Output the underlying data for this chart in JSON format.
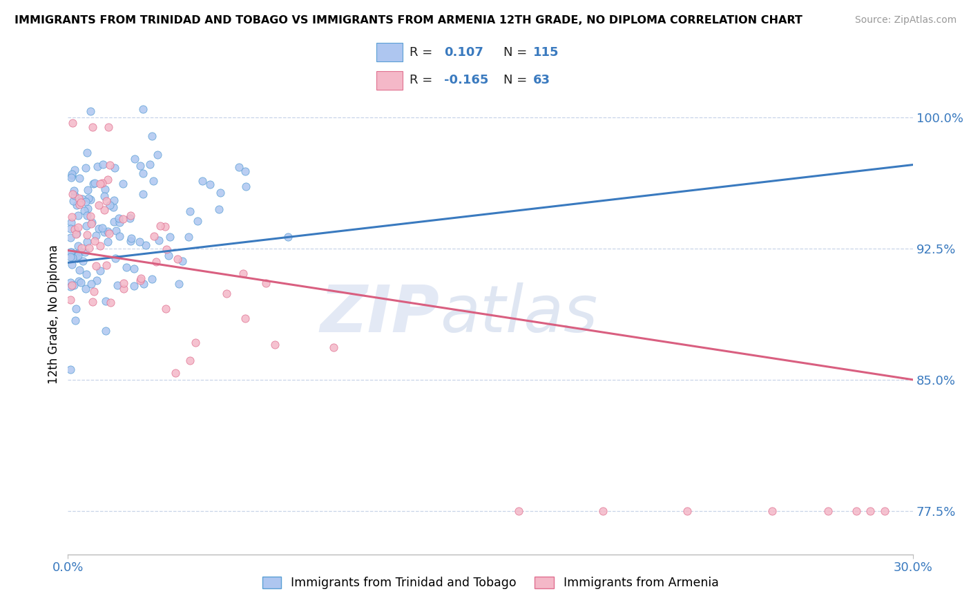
{
  "title": "IMMIGRANTS FROM TRINIDAD AND TOBAGO VS IMMIGRANTS FROM ARMENIA 12TH GRADE, NO DIPLOMA CORRELATION CHART",
  "source": "Source: ZipAtlas.com",
  "legend_labels": [
    "Immigrants from Trinidad and Tobago",
    "Immigrants from Armenia"
  ],
  "r_tt": 0.107,
  "n_tt": 115,
  "r_arm": -0.165,
  "n_arm": 63,
  "color_tt_fill": "#aec6f0",
  "color_tt_edge": "#5a9fd4",
  "color_arm_fill": "#f4b8c8",
  "color_arm_edge": "#e07090",
  "color_line_tt": "#3a7abf",
  "color_line_arm": "#d95f80",
  "bg_color": "#ffffff",
  "grid_color": "#c8d4e8",
  "watermark_zip": "ZIP",
  "watermark_atlas": "atlas",
  "xmin": 0.0,
  "xmax": 0.3,
  "ymin": 0.75,
  "ymax": 1.025,
  "ytick_vals": [
    0.775,
    0.85,
    0.925,
    1.0
  ],
  "ytick_labels": [
    "77.5%",
    "85.0%",
    "92.5%",
    "100.0%"
  ],
  "xtick_vals": [
    0.0,
    0.3
  ],
  "xtick_labels": [
    "0.0%",
    "30.0%"
  ],
  "line_tt_x0": 0.0,
  "line_tt_y0": 0.917,
  "line_tt_x1": 0.3,
  "line_tt_y1": 0.973,
  "line_arm_x0": 0.0,
  "line_arm_y0": 0.924,
  "line_arm_x1": 0.3,
  "line_arm_y1": 0.85
}
